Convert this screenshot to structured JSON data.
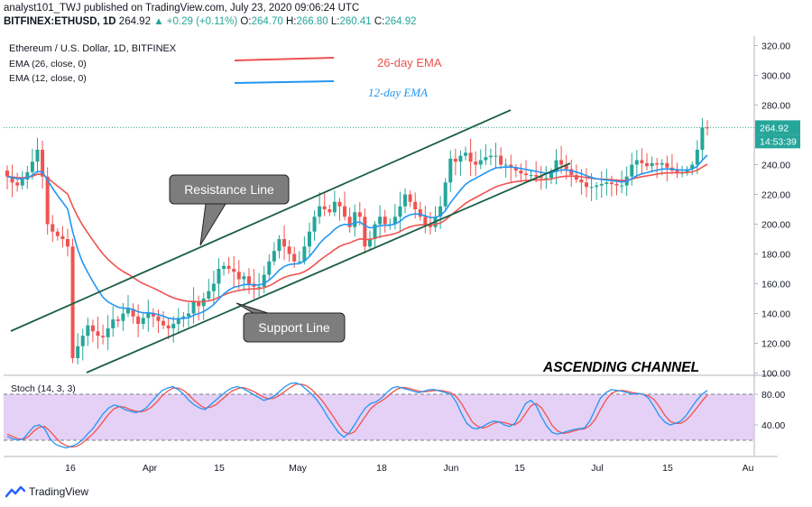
{
  "header": {
    "publisher": "analyst101_TWJ published on TradingView.com, July 23, 2020 09:06:24 UTC",
    "symbol": "BITFINEX:ETHUSD, 1D",
    "last": "264.92",
    "change": "+0.29 (+0.11%)",
    "o_label": "O:",
    "o": "264.70",
    "h_label": "H:",
    "h": "266.80",
    "l_label": "L:",
    "l": "260.41",
    "c_label": "C:",
    "c": "264.92"
  },
  "legend": {
    "title": "Ethereum / U.S. Dollar, 1D, BITFINEX",
    "ema26": "EMA (26, close, 0)",
    "ema12": "EMA (12, close, 0)"
  },
  "annotations": {
    "ema26_label": "26-day EMA",
    "ema12_label": "12-day EMA",
    "resistance": "Resistance Line",
    "support": "Support Line",
    "channel": "ASCENDING CHANNEL"
  },
  "price_badge": "264.92",
  "timer_badge": "14:53:39",
  "stoch_label": "Stoch (14, 3, 3)",
  "footer_brand": "TradingView",
  "colors": {
    "up": "#26a69a",
    "down": "#ef5350",
    "ema12": "#2196f3",
    "ema26": "#ef5350",
    "channel": "#1b5e46",
    "stochK": "#2196f3",
    "stochD": "#ef5350",
    "stochBand": "#e1c8f5"
  },
  "chart_data": [
    {
      "type": "candlestick",
      "title": "Ethereum / U.S. Dollar, 1D, BITFINEX",
      "x_ticks": [
        "16",
        "Apr",
        "15",
        "May",
        "18",
        "Jun",
        "15",
        "Jul",
        "15",
        "Au"
      ],
      "y_ticks": [
        "100.00",
        "120.00",
        "140.00",
        "160.00",
        "180.00",
        "200.00",
        "220.00",
        "240.00",
        "260.00",
        "280.00",
        "300.00",
        "320.00"
      ],
      "ylim": [
        100,
        320
      ],
      "closes": [
        232,
        228,
        226,
        230,
        235,
        242,
        250,
        232,
        200,
        195,
        192,
        190,
        185,
        110,
        118,
        125,
        132,
        128,
        125,
        124,
        130,
        136,
        135,
        140,
        143,
        138,
        133,
        137,
        140,
        138,
        135,
        132,
        130,
        133,
        137,
        138,
        140,
        148,
        145,
        150,
        155,
        160,
        170,
        172,
        170,
        168,
        163,
        165,
        160,
        158,
        158,
        166,
        175,
        182,
        190,
        185,
        180,
        175,
        175,
        185,
        195,
        205,
        212,
        210,
        208,
        215,
        212,
        205,
        198,
        208,
        205,
        185,
        190,
        200,
        205,
        200,
        200,
        205,
        212,
        220,
        215,
        210,
        205,
        200,
        198,
        205,
        212,
        228,
        244,
        242,
        246,
        248,
        242,
        240,
        243,
        245,
        246,
        246,
        240,
        240,
        238,
        236,
        234,
        233,
        233,
        232,
        231,
        231,
        235,
        243,
        240,
        237,
        233,
        230,
        228,
        225,
        225,
        226,
        227,
        228,
        227,
        226,
        226,
        232,
        240,
        243,
        241,
        239,
        241,
        240,
        241,
        238,
        236,
        234,
        235,
        237,
        240,
        250,
        265,
        264.92
      ]
    },
    {
      "type": "line",
      "title": "Stoch (14, 3, 3)",
      "y_ticks": [
        "40.00",
        "80.00"
      ],
      "ylim": [
        0,
        100
      ],
      "series": [
        {
          "name": "%K",
          "values": [
            25,
            22,
            20,
            22,
            30,
            38,
            40,
            35,
            22,
            15,
            12,
            10,
            12,
            15,
            20,
            28,
            35,
            45,
            55,
            62,
            66,
            64,
            60,
            58,
            56,
            58,
            62,
            70,
            78,
            85,
            88,
            90,
            86,
            80,
            72,
            66,
            62,
            60,
            66,
            72,
            78,
            84,
            88,
            90,
            88,
            84,
            80,
            76,
            72,
            74,
            78,
            84,
            90,
            94,
            95,
            92,
            86,
            80,
            72,
            62,
            50,
            40,
            30,
            24,
            30,
            40,
            52,
            62,
            68,
            70,
            75,
            82,
            88,
            90,
            88,
            86,
            84,
            82,
            84,
            86,
            86,
            84,
            82,
            80,
            70,
            55,
            42,
            36,
            35,
            38,
            42,
            45,
            44,
            40,
            38,
            42,
            55,
            68,
            72,
            65,
            50,
            38,
            30,
            28,
            30,
            32,
            34,
            35,
            36,
            45,
            60,
            75,
            82,
            86,
            85,
            84,
            82,
            80,
            81,
            80,
            75,
            64,
            52,
            44,
            40,
            42,
            45,
            52,
            62,
            72,
            80,
            85
          ]
        },
        {
          "name": "%D",
          "values": [
            28,
            25,
            22,
            21,
            25,
            32,
            37,
            38,
            32,
            24,
            17,
            13,
            11,
            12,
            16,
            22,
            28,
            36,
            45,
            54,
            61,
            64,
            63,
            60,
            58,
            57,
            59,
            63,
            70,
            78,
            84,
            88,
            88,
            85,
            79,
            72,
            66,
            62,
            63,
            66,
            72,
            78,
            84,
            87,
            89,
            87,
            84,
            80,
            76,
            74,
            75,
            79,
            84,
            89,
            93,
            93,
            91,
            86,
            79,
            71,
            61,
            51,
            40,
            31,
            28,
            31,
            41,
            51,
            61,
            67,
            71,
            76,
            82,
            87,
            89,
            88,
            86,
            84,
            83,
            84,
            85,
            85,
            84,
            82,
            77,
            68,
            56,
            44,
            38,
            36,
            38,
            42,
            44,
            43,
            41,
            40,
            45,
            55,
            65,
            68,
            62,
            51,
            39,
            32,
            29,
            30,
            32,
            34,
            35,
            39,
            47,
            60,
            72,
            81,
            84,
            85,
            84,
            82,
            81,
            80,
            78,
            73,
            64,
            53,
            45,
            42,
            42,
            46,
            53,
            62,
            71,
            79
          ]
        }
      ]
    }
  ]
}
